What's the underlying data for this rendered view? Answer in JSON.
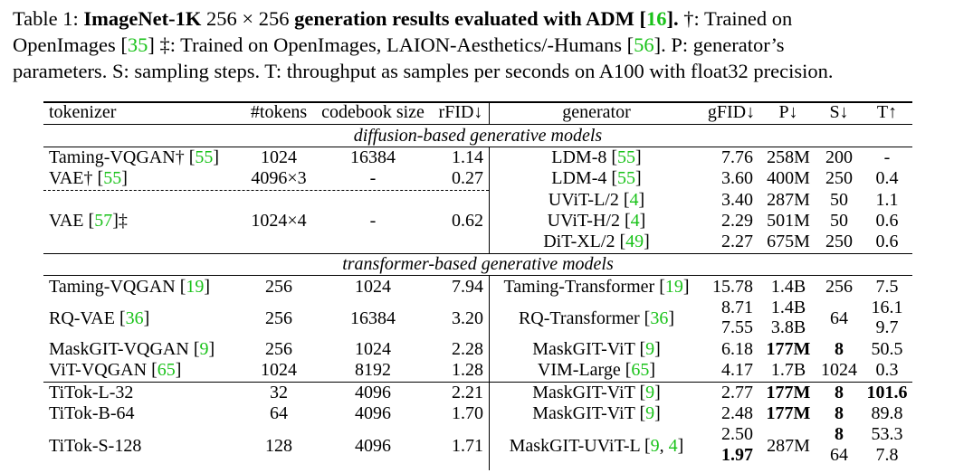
{
  "caption": {
    "label": "Table 1: ",
    "title_bold": "ImageNet-1K",
    "resolution": " 256 × 256 ",
    "title_bold2": "generation results evaluated with ADM [",
    "cite_adm": "16",
    "title_bold3": "].",
    "line1_rest": " †: Trained on",
    "line2a": "OpenImages [",
    "cite_oi": "35",
    "line2b": "] ‡: Trained on OpenImages, LAION-Aesthetics/-Humans [",
    "cite_laion": "56",
    "line2c": "]. P: generator’s",
    "line3": "parameters. S: sampling steps. T: throughput as samples per seconds on A100 with float32 precision."
  },
  "headers": {
    "tokenizer": "tokenizer",
    "tokens": "#tokens",
    "codebook": "codebook size",
    "rfid": "rFID↓",
    "generator": "generator",
    "gfid": "gFID↓",
    "p": "P↓",
    "s": "S↓",
    "t": "T↑"
  },
  "sections": {
    "diffusion": "diffusion-based generative models",
    "transformer": "transformer-based generative models"
  },
  "diffusion_rows": [
    {
      "tok": "Taming-VQGAN†",
      "tok_cite": "55",
      "tokens": "1024",
      "codebook": "16384",
      "rfid": "1.14",
      "gen": "LDM-8",
      "gen_cite": "55",
      "gfid": "7.76",
      "p": "258M",
      "s": "200",
      "t": "-"
    },
    {
      "tok": "VAE†",
      "tok_cite": "55",
      "tokens": "4096×3",
      "codebook": "-",
      "rfid": "0.27",
      "gen": "LDM-4",
      "gen_cite": "55",
      "gfid": "3.60",
      "p": "400M",
      "s": "250",
      "t": "0.4"
    },
    {
      "tok": "",
      "tok_cite": "",
      "tokens": "",
      "codebook": "",
      "rfid": "",
      "gen": "UViT-L/2",
      "gen_cite": "4",
      "gfid": "3.40",
      "p": "287M",
      "s": "50",
      "t": "1.1"
    },
    {
      "tok": "VAE",
      "tok_cite": "57",
      "tok_suffix": "‡",
      "tokens": "1024×4",
      "codebook": "-",
      "rfid": "0.62",
      "gen": "UViT-H/2",
      "gen_cite": "4",
      "gfid": "2.29",
      "p": "501M",
      "s": "50",
      "t": "0.6"
    },
    {
      "tok": "",
      "tok_cite": "",
      "tokens": "",
      "codebook": "",
      "rfid": "",
      "gen": "DiT-XL/2",
      "gen_cite": "49",
      "gfid": "2.27",
      "p": "675M",
      "s": "250",
      "t": "0.6"
    }
  ],
  "transformer_rows": [
    {
      "tok": "Taming-VQGAN",
      "tok_cite": "19",
      "tokens": "256",
      "codebook": "1024",
      "rfid": "7.94",
      "gen": "Taming-Transformer",
      "gen_cite": "19",
      "gfid": "15.78",
      "p": "1.4B",
      "s": "256",
      "t": "7.5"
    },
    {
      "tok": "RQ-VAE",
      "tok_cite": "36",
      "tokens": "256",
      "codebook": "16384",
      "rfid": "3.20",
      "gen": "RQ-Transformer",
      "gen_cite": "36",
      "gfid": "8.71",
      "gfid2": "7.55",
      "p": "1.4B",
      "p2": "3.8B",
      "s": "64",
      "t": "16.1",
      "t2": "9.7"
    },
    {
      "tok": "MaskGIT-VQGAN",
      "tok_cite": "9",
      "tokens": "256",
      "codebook": "1024",
      "rfid": "2.28",
      "gen": "MaskGIT-ViT",
      "gen_cite": "9",
      "gfid": "6.18",
      "p": "177M",
      "s": "8",
      "t": "50.5"
    },
    {
      "tok": "ViT-VQGAN",
      "tok_cite": "65",
      "tokens": "1024",
      "codebook": "8192",
      "rfid": "1.28",
      "gen": "VIM-Large",
      "gen_cite": "65",
      "gfid": "4.17",
      "p": "1.7B",
      "s": "1024",
      "t": "0.3"
    }
  ],
  "titok_rows": [
    {
      "tok": "TiTok-L-32",
      "tokens": "32",
      "codebook": "4096",
      "rfid": "2.21",
      "gen": "MaskGIT-ViT",
      "gen_cite": "9",
      "gfid": "2.77",
      "p": "177M",
      "s": "8",
      "t": "101.6"
    },
    {
      "tok": "TiTok-B-64",
      "tokens": "64",
      "codebook": "4096",
      "rfid": "1.70",
      "gen": "MaskGIT-ViT",
      "gen_cite": "9",
      "gfid": "2.48",
      "p": "177M",
      "s": "8",
      "t": "89.8"
    },
    {
      "tok": "TiTok-S-128",
      "tokens": "128",
      "codebook": "4096",
      "rfid": "1.71",
      "gen": "MaskGIT-UViT-L",
      "gen_cite": "9",
      "gen_cite2": "4",
      "gfid": "2.50",
      "gfid2": "1.97",
      "p": "287M",
      "s": "8",
      "s2": "64",
      "t": "53.3",
      "t2": "7.8"
    }
  ]
}
